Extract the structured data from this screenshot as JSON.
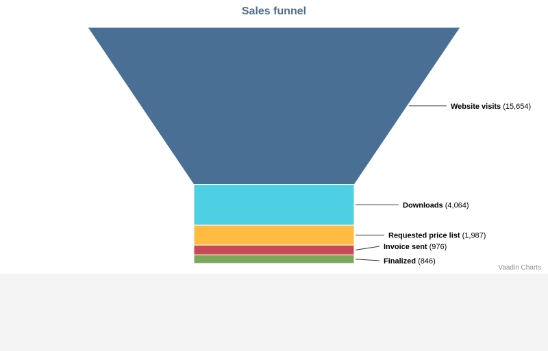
{
  "chart_data": {
    "type": "funnel",
    "title": "Sales funnel",
    "categories": [
      "Website visits",
      "Downloads",
      "Requested price list",
      "Invoice sent",
      "Finalized"
    ],
    "values": [
      15654,
      4064,
      1987,
      976,
      846
    ],
    "value_labels": [
      "15,654",
      "4,064",
      "1,987",
      "976",
      "846"
    ],
    "colors": [
      "#4a6f94",
      "#4dd0e4",
      "#ffbc40",
      "#c94a55",
      "#7ba858"
    ],
    "legend": false
  },
  "credits": "Vaadin Charts"
}
